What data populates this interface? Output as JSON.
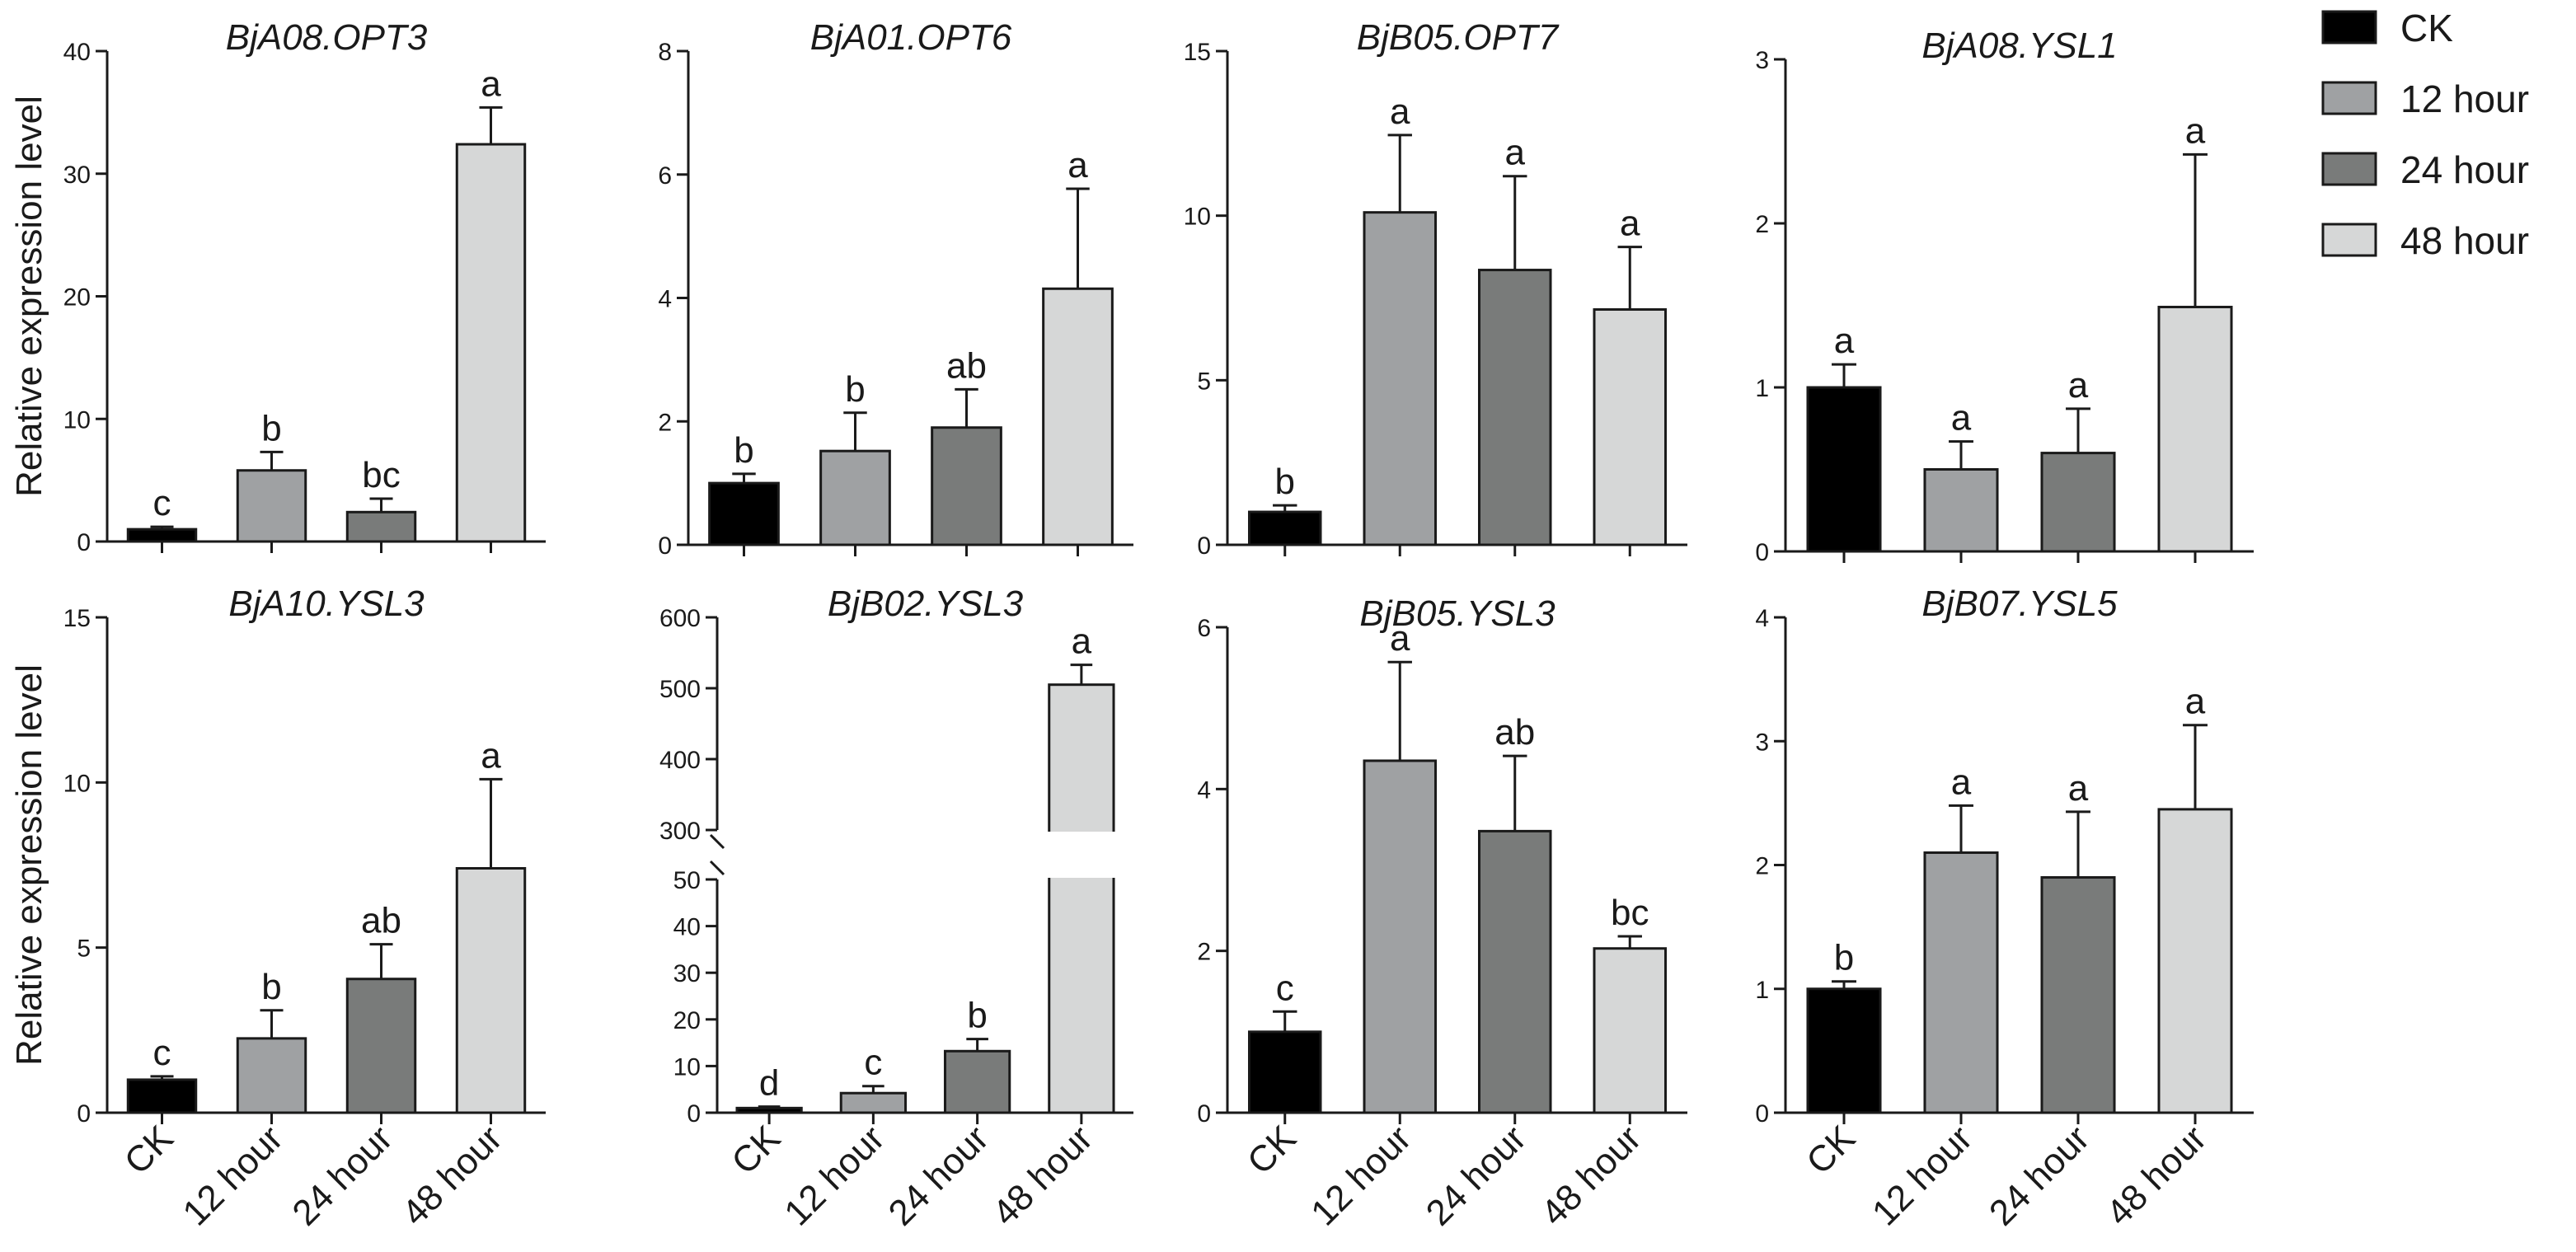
{
  "figure": {
    "ylabel": "Relative expression level",
    "legend": {
      "placement": "top-right",
      "items": [
        {
          "label": "CK",
          "color": "#000000"
        },
        {
          "label": "12 hour",
          "color": "#9fa1a3"
        },
        {
          "label": "24 hour",
          "color": "#797b7a"
        },
        {
          "label": "48 hour",
          "color": "#d6d7d7"
        }
      ]
    }
  },
  "chart_data": [
    {
      "type": "bar",
      "title": "BjA08.OPT3",
      "categories": [
        "CK",
        "12 hour",
        "24 hour",
        "48 hour"
      ],
      "values": [
        1.0,
        5.8,
        2.4,
        32.4
      ],
      "errors": [
        0.2,
        1.5,
        1.1,
        3.0
      ],
      "significance": [
        "c",
        "b",
        "bc",
        "a"
      ],
      "ylim": [
        0,
        40
      ],
      "yticks": [
        0,
        10,
        20,
        30,
        40
      ],
      "ylabel": "Relative expression level",
      "show_x_labels": false
    },
    {
      "type": "bar",
      "title": "BjA01.OPT6",
      "categories": [
        "CK",
        "12 hour",
        "24 hour",
        "48 hour"
      ],
      "values": [
        1.0,
        1.52,
        1.9,
        4.15
      ],
      "errors": [
        0.15,
        0.62,
        0.62,
        1.62
      ],
      "significance": [
        "b",
        "b",
        "ab",
        "a"
      ],
      "ylim": [
        0,
        8
      ],
      "yticks": [
        0,
        2,
        4,
        6,
        8
      ],
      "ylabel": "",
      "show_x_labels": false
    },
    {
      "type": "bar",
      "title": "BjB05.OPT7",
      "categories": [
        "CK",
        "12 hour",
        "24 hour",
        "48 hour"
      ],
      "values": [
        1.0,
        10.1,
        8.35,
        7.15
      ],
      "errors": [
        0.2,
        2.35,
        2.85,
        1.9
      ],
      "significance": [
        "b",
        "a",
        "a",
        "a"
      ],
      "ylim": [
        0,
        15
      ],
      "yticks": [
        0,
        5,
        10,
        15
      ],
      "ylabel": "",
      "show_x_labels": false
    },
    {
      "type": "bar",
      "title": "BjA08.YSL1",
      "categories": [
        "CK",
        "12 hour",
        "24 hour",
        "48 hour"
      ],
      "values": [
        1.0,
        0.5,
        0.6,
        1.49
      ],
      "errors": [
        0.14,
        0.17,
        0.27,
        0.93
      ],
      "significance": [
        "a",
        "a",
        "a",
        "a"
      ],
      "ylim": [
        0,
        3
      ],
      "yticks": [
        0,
        1,
        2,
        3
      ],
      "ylabel": "",
      "show_x_labels": false
    },
    {
      "type": "bar",
      "title": "BjA10.YSL3",
      "categories": [
        "CK",
        "12 hour",
        "24 hour",
        "48 hour"
      ],
      "values": [
        1.0,
        2.25,
        4.05,
        7.4
      ],
      "errors": [
        0.1,
        0.85,
        1.05,
        2.7
      ],
      "significance": [
        "c",
        "b",
        "ab",
        "a"
      ],
      "ylim": [
        0,
        15
      ],
      "yticks": [
        0,
        5,
        10,
        15
      ],
      "ylabel": "Relative expression level",
      "show_x_labels": true
    },
    {
      "type": "bar",
      "title": "BjB02.YSL3",
      "categories": [
        "CK",
        "12 hour",
        "24 hour",
        "48 hour"
      ],
      "values": [
        1.0,
        4.2,
        13.2,
        505
      ],
      "errors": [
        0.3,
        1.5,
        2.6,
        28
      ],
      "significance": [
        "d",
        "c",
        "b",
        "a"
      ],
      "axis_break": {
        "lower": [
          0,
          50
        ],
        "upper": [
          300,
          600
        ]
      },
      "yticks_lower": [
        0,
        10,
        20,
        30,
        40,
        50
      ],
      "yticks_upper": [
        300,
        400,
        500,
        600
      ],
      "ylabel": "",
      "show_x_labels": true
    },
    {
      "type": "bar",
      "title": "BjB05.YSL3",
      "categories": [
        "CK",
        "12 hour",
        "24 hour",
        "48 hour"
      ],
      "values": [
        1.0,
        4.35,
        3.48,
        2.03
      ],
      "errors": [
        0.25,
        1.22,
        0.93,
        0.15
      ],
      "significance": [
        "c",
        "a",
        "ab",
        "bc"
      ],
      "ylim": [
        0,
        6
      ],
      "yticks": [
        0,
        2,
        4,
        6
      ],
      "ylabel": "",
      "show_x_labels": true
    },
    {
      "type": "bar",
      "title": "BjB07.YSL5",
      "categories": [
        "CK",
        "12 hour",
        "24 hour",
        "48 hour"
      ],
      "values": [
        1.0,
        2.1,
        1.9,
        2.45
      ],
      "errors": [
        0.06,
        0.38,
        0.53,
        0.68
      ],
      "significance": [
        "b",
        "a",
        "a",
        "a"
      ],
      "ylim": [
        0,
        4
      ],
      "yticks": [
        0,
        1,
        2,
        3,
        4
      ],
      "ylabel": "",
      "show_x_labels": true
    }
  ]
}
